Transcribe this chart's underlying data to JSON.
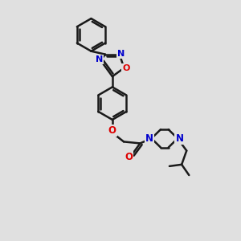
{
  "bg_color": "#e0e0e0",
  "bond_color": "#1a1a1a",
  "N_color": "#0000cc",
  "O_color": "#dd0000",
  "bond_width": 1.8,
  "dpi": 100,
  "figsize": [
    3.0,
    3.0
  ],
  "xlim": [
    0.0,
    10.0
  ],
  "ylim": [
    -1.0,
    13.5
  ]
}
